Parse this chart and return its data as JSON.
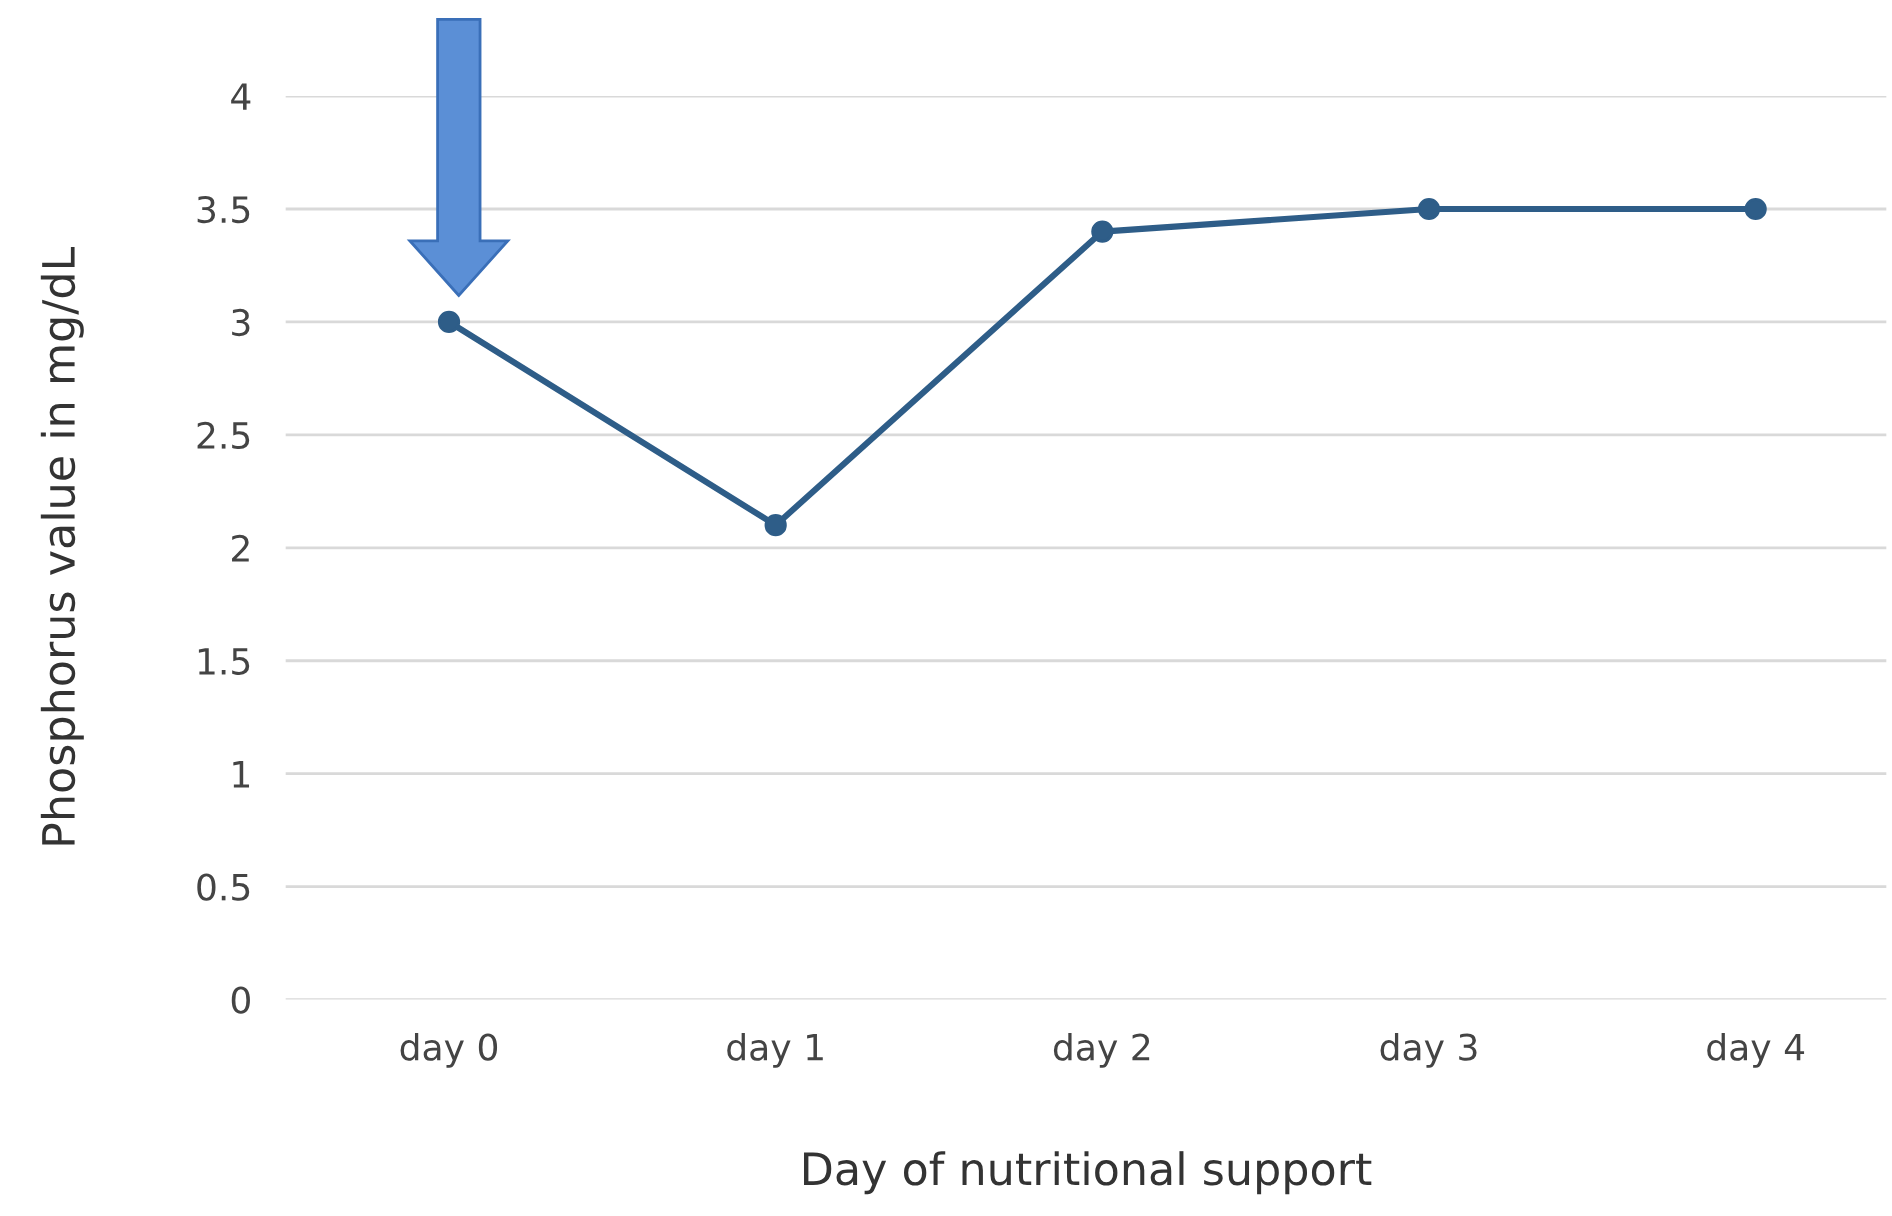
{
  "chart_data": {
    "type": "line",
    "xlabel": "Day of nutritional support",
    "ylabel": "Phosphorus value in mg/dL",
    "categories": [
      "day 0",
      "day 1",
      "day 2",
      "day 3",
      "day 4"
    ],
    "series": [
      {
        "color": "#2e5d88",
        "values": [
          3.0,
          2.1,
          3.4,
          3.5,
          3.5
        ]
      }
    ],
    "ylim": [
      0,
      4
    ],
    "yticks": [
      0,
      0.5,
      1,
      1.5,
      2,
      2.5,
      3,
      3.5,
      4
    ],
    "grid": "y",
    "marker": "circle",
    "line_style": "solid",
    "legend": false
  }
}
